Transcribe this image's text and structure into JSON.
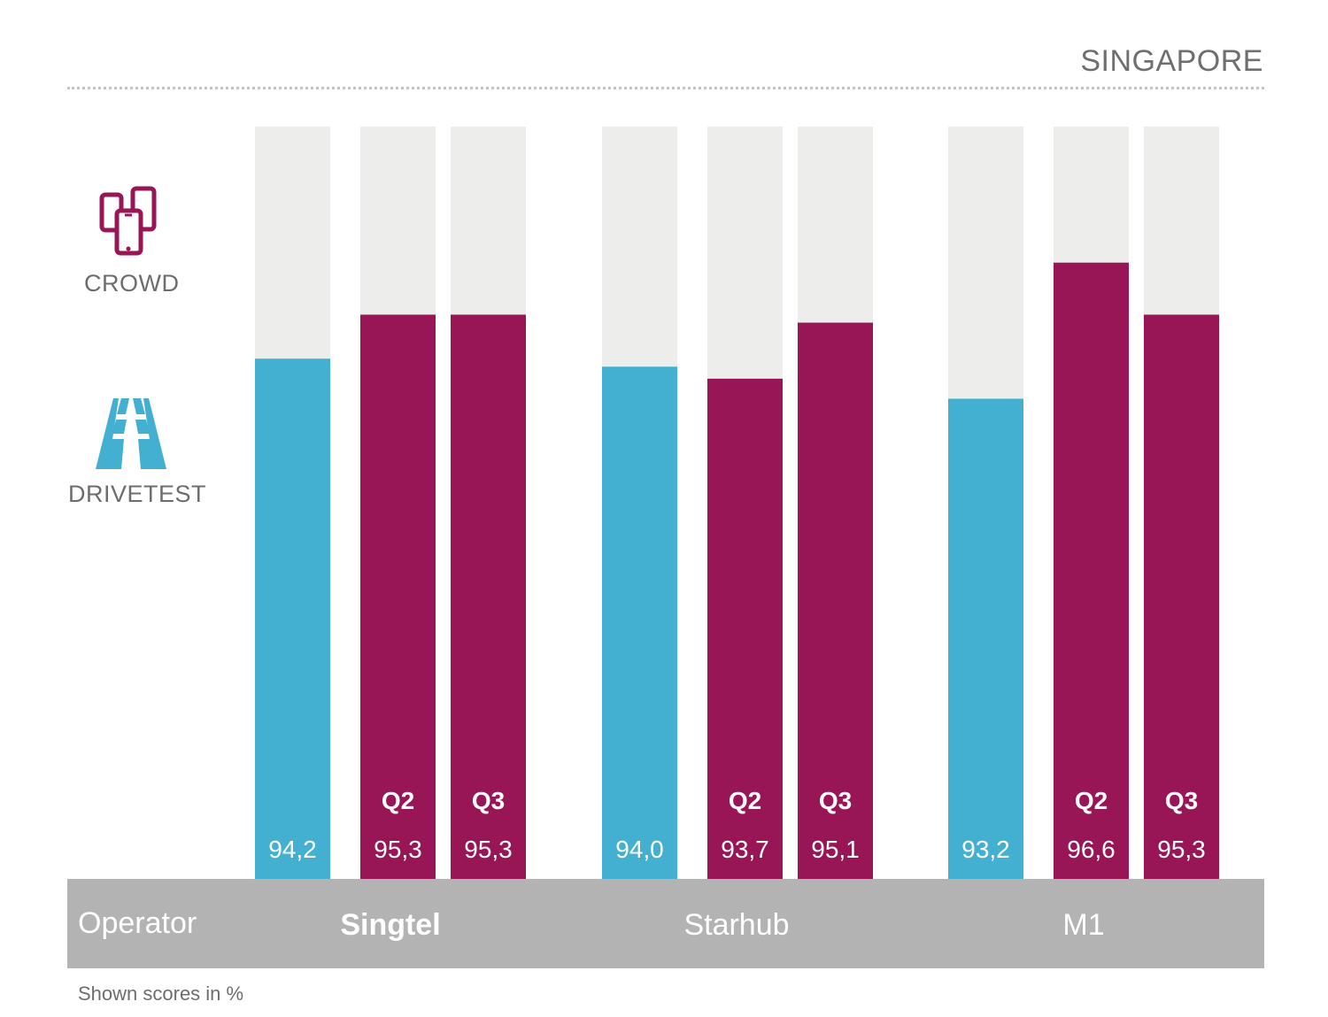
{
  "title": "SINGAPORE",
  "legend": {
    "crowd": {
      "label": "CROWD",
      "color": "#981556",
      "icon": "smartphones-icon"
    },
    "drivetest": {
      "label": "DRIVETEST",
      "color": "#43b0d1",
      "icon": "road-icon"
    }
  },
  "operator_row": {
    "label": "Operator",
    "names": [
      "Singtel",
      "Starhub",
      "M1"
    ],
    "highlighted": "Singtel"
  },
  "footnote": "Shown scores in %",
  "colors": {
    "background_track": "#ededeb",
    "drivetest": "#43b0d1",
    "crowd": "#981556",
    "operator_bar": "#b3b3b3"
  },
  "chart_data": {
    "type": "bar",
    "title": "SINGAPORE",
    "unit": "%",
    "ylim": [
      0,
      100
    ],
    "grid": false,
    "groups": [
      {
        "operator": "Singtel",
        "bars": [
          {
            "source": "DRIVETEST",
            "label": "",
            "value": 94.2,
            "display": "94,2"
          },
          {
            "source": "CROWD",
            "label": "Q2",
            "value": 95.3,
            "display": "95,3"
          },
          {
            "source": "CROWD",
            "label": "Q3",
            "value": 95.3,
            "display": "95,3"
          }
        ]
      },
      {
        "operator": "Starhub",
        "bars": [
          {
            "source": "DRIVETEST",
            "label": "",
            "value": 94.0,
            "display": "94,0"
          },
          {
            "source": "CROWD",
            "label": "Q2",
            "value": 93.7,
            "display": "93,7"
          },
          {
            "source": "CROWD",
            "label": "Q3",
            "value": 95.1,
            "display": "95,1"
          }
        ]
      },
      {
        "operator": "M1",
        "bars": [
          {
            "source": "DRIVETEST",
            "label": "",
            "value": 93.2,
            "display": "93,2"
          },
          {
            "source": "CROWD",
            "label": "Q2",
            "value": 96.6,
            "display": "96,6"
          },
          {
            "source": "CROWD",
            "label": "Q3",
            "value": 95.3,
            "display": "95,3"
          }
        ]
      }
    ]
  }
}
